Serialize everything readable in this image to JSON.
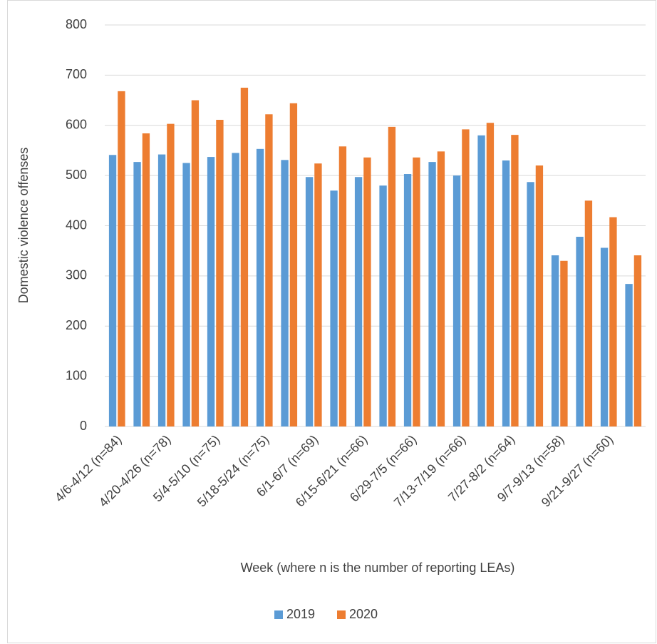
{
  "chart_data": {
    "type": "bar",
    "y_label": "Domestic violence offenses",
    "x_label": "Week (where n is the number of reporting LEAs)",
    "categories": [
      "4/6-4/12 (n=84)",
      null,
      "4/20-4/26 (n=78)",
      null,
      "5/4-5/10 (n=75)",
      null,
      "5/18-5/24 (n=75)",
      null,
      "6/1-6/7 (n=69)",
      null,
      "6/15-6/21 (n=66)",
      null,
      "6/29-7/5 (n=66)",
      null,
      "7/13-7/19 (n=66)",
      null,
      "7/27-8/2 (n=64)",
      null,
      "9/7-9/13 (n=58)",
      null,
      "9/21-9/27 (n=60)",
      null
    ],
    "series": [
      {
        "name": "2019",
        "color": "#5b9bd5",
        "values": [
          541,
          527,
          542,
          525,
          537,
          545,
          553,
          531,
          497,
          470,
          497,
          480,
          503,
          527,
          500,
          580,
          530,
          487,
          341,
          378,
          356,
          284
        ]
      },
      {
        "name": "2020",
        "color": "#ed7d31",
        "values": [
          668,
          584,
          603,
          650,
          611,
          675,
          622,
          644,
          524,
          558,
          536,
          597,
          536,
          548,
          592,
          605,
          581,
          520,
          330,
          450,
          417,
          341
        ]
      }
    ],
    "ylim": [
      0,
      800
    ],
    "yticks": [
      0,
      100,
      200,
      300,
      400,
      500,
      600,
      700,
      800
    ],
    "grid": true,
    "legend": "bottom"
  }
}
